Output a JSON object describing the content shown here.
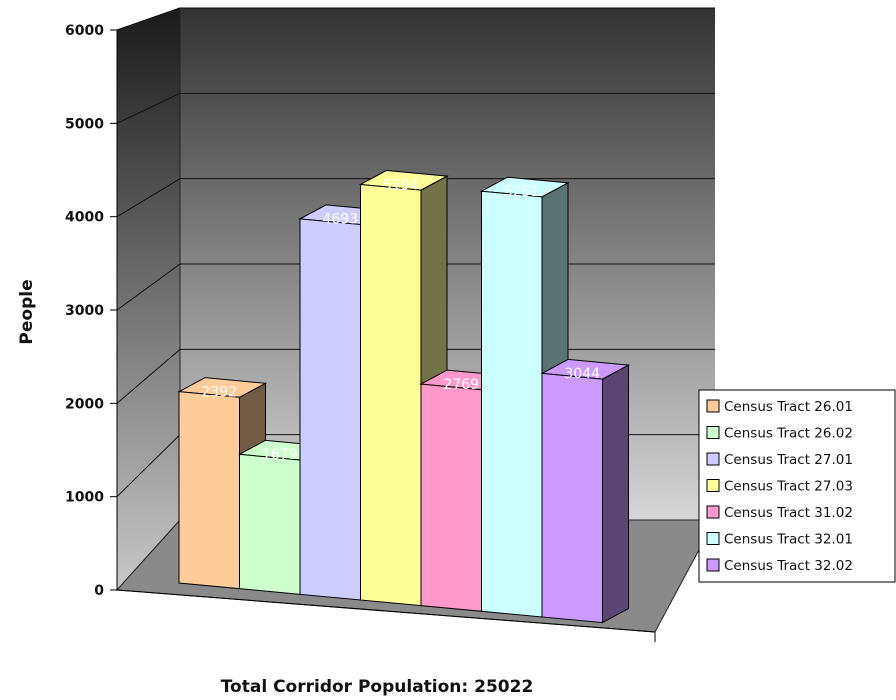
{
  "chart_data": {
    "type": "bar",
    "title": "",
    "xlabel": "Total Corridor Population: 25022",
    "ylabel": "People",
    "ylim": [
      0,
      6000
    ],
    "yticks": [
      0,
      1000,
      2000,
      3000,
      4000,
      5000,
      6000
    ],
    "grid": true,
    "legend_position": "right",
    "series": [
      {
        "name": "Census Tract 26.01",
        "value": 2392,
        "color": "#FFCC99"
      },
      {
        "name": "Census Tract 26.02",
        "value": 1679,
        "color": "#CCFFCC"
      },
      {
        "name": "Census Tract 27.01",
        "value": 4693,
        "color": "#CCCCFF"
      },
      {
        "name": "Census Tract 27.03",
        "value": 5194,
        "color": "#FFFF99"
      },
      {
        "name": "Census Tract 31.02",
        "value": 2769,
        "color": "#FF99CC"
      },
      {
        "name": "Census Tract 32.01",
        "value": 5251,
        "color": "#CCFFFF"
      },
      {
        "name": "Census Tract 32.02",
        "value": 3044,
        "color": "#CC99FF"
      }
    ]
  }
}
